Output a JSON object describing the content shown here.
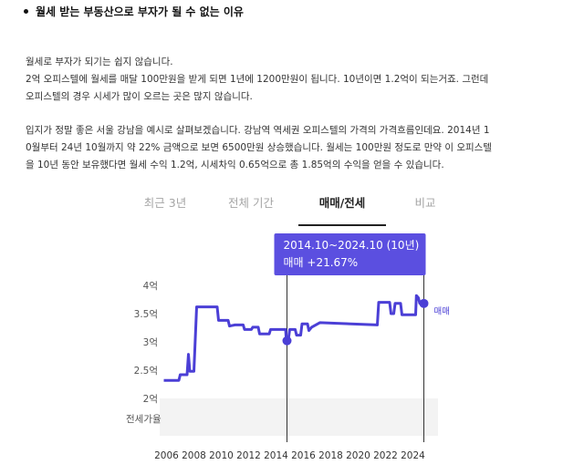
{
  "article": {
    "heading": "월세 받는 부동산으로 부자가 될 수 없는 이유",
    "paragraph1": [
      "월세로 부자가 되기는 쉽지 않습니다.",
      "2억 오피스텔에 월세를 매달 100만원을 받게 되면 1년에 1200만원이 됩니다. 10년이면 1.2억이 되는거죠. 그런데",
      "오피스텔의 경우 시세가 많이 오르는 곳은 많지 않습니다."
    ],
    "paragraph2": [
      "입지가 정말 좋은 서울 강남을 예시로 살펴보겠습니다. 강남역 역세권 오피스텔의 가격의 가격흐름인데요. 2014년 1",
      "0월부터 24년 10월까지 약 22% 금액으로 보면 6500만원 상승했습니다. 월세는 100만원 정도로 만약 이 오피스텔",
      "을 10년 동안 보유했다면 월세 수익 1.2억, 시세차익 0.65억으로 총 1.85억의 수익을 얻을 수 있습니다."
    ]
  },
  "tabs": [
    {
      "label": "최근 3년",
      "active": false
    },
    {
      "label": "전체 기간",
      "active": false
    },
    {
      "label": "매매/전세",
      "active": true
    },
    {
      "label": "비교",
      "active": false
    }
  ],
  "tooltip": {
    "period": "2014.10~2024.10 (10년)",
    "change": "매매 +21.67%"
  },
  "colors": {
    "line": "#4b3fd6",
    "tooltip_bg": "#5b4fe0",
    "band_bg": "#f3f3f3",
    "marker_line": "#333333"
  },
  "chart_data": {
    "type": "line",
    "series": [
      {
        "name": "매매",
        "points": [
          [
            2005.8,
            2.32
          ],
          [
            2006.9,
            2.32
          ],
          [
            2007.0,
            2.42
          ],
          [
            2007.5,
            2.42
          ],
          [
            2007.6,
            2.78
          ],
          [
            2007.7,
            2.48
          ],
          [
            2008.0,
            2.48
          ],
          [
            2008.2,
            3.62
          ],
          [
            2009.7,
            3.62
          ],
          [
            2009.8,
            3.38
          ],
          [
            2010.5,
            3.38
          ],
          [
            2010.6,
            3.28
          ],
          [
            2011.0,
            3.3
          ],
          [
            2011.6,
            3.3
          ],
          [
            2011.7,
            3.22
          ],
          [
            2012.2,
            3.22
          ],
          [
            2012.3,
            3.26
          ],
          [
            2012.7,
            3.26
          ],
          [
            2012.8,
            3.14
          ],
          [
            2013.5,
            3.14
          ],
          [
            2013.6,
            3.22
          ],
          [
            2014.7,
            3.22
          ],
          [
            2014.75,
            3.02
          ],
          [
            2014.9,
            3.04
          ],
          [
            2015.0,
            3.22
          ],
          [
            2015.4,
            3.22
          ],
          [
            2015.5,
            3.12
          ],
          [
            2015.8,
            3.12
          ],
          [
            2015.9,
            3.32
          ],
          [
            2016.3,
            3.32
          ],
          [
            2016.4,
            3.2
          ],
          [
            2016.6,
            3.26
          ],
          [
            2017.2,
            3.34
          ],
          [
            2021.4,
            3.3
          ],
          [
            2021.5,
            3.7
          ],
          [
            2022.3,
            3.7
          ],
          [
            2022.4,
            3.5
          ],
          [
            2022.6,
            3.5
          ],
          [
            2022.7,
            3.68
          ],
          [
            2023.1,
            3.68
          ],
          [
            2023.2,
            3.48
          ],
          [
            2024.2,
            3.48
          ],
          [
            2024.25,
            3.82
          ],
          [
            2024.4,
            3.78
          ],
          [
            2024.5,
            3.68
          ],
          [
            2024.8,
            3.68
          ]
        ]
      }
    ],
    "highlight_start": [
      2014.8,
      3.02
    ],
    "highlight_end": [
      2024.8,
      3.68
    ],
    "y_ticks": [
      2,
      2.5,
      3,
      3.5,
      4
    ],
    "y_tick_labels": [
      "2억",
      "2.5억",
      "3억",
      "3.5억",
      "4억"
    ],
    "x_ticks": [
      2006,
      2008,
      2010,
      2012,
      2014,
      2016,
      2018,
      2020,
      2022,
      2024
    ],
    "x_tick_labels": [
      "2006",
      "2008",
      "2010",
      "2012",
      "2014",
      "2016",
      "2018",
      "2020",
      "2022",
      "2024"
    ],
    "xlim": [
      2005.5,
      2025.3
    ],
    "ylim": [
      2,
      4
    ],
    "end_label": "매매",
    "band_label": "전세가율"
  }
}
